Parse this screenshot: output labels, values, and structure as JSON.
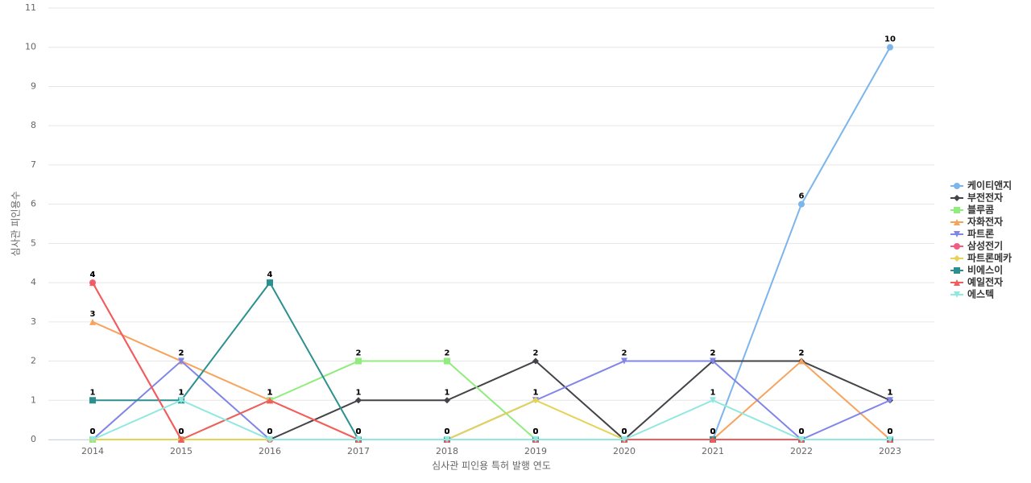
{
  "chart_data": {
    "type": "line",
    "x_label": "심사관 피인용 특허 발행 연도",
    "y_label": "심사관 피인용수",
    "categories": [
      "2014",
      "2015",
      "2016",
      "2017",
      "2018",
      "2019",
      "2020",
      "2021",
      "2022",
      "2023"
    ],
    "ylim": [
      0,
      11
    ],
    "yticks": [
      0,
      1,
      2,
      3,
      4,
      5,
      6,
      7,
      8,
      9,
      10,
      11
    ],
    "grid": true,
    "legend": "right",
    "series": [
      {
        "name": "케이티앤지",
        "color": "#7cb5ec",
        "marker": "circle",
        "values": [
          0,
          0,
          0,
          0,
          0,
          0,
          0,
          0,
          6,
          10
        ]
      },
      {
        "name": "부전전자",
        "color": "#434348",
        "marker": "diamond",
        "values": [
          0,
          0,
          0,
          1,
          1,
          2,
          0,
          2,
          2,
          1
        ]
      },
      {
        "name": "블루콤",
        "color": "#90ed7d",
        "marker": "square",
        "values": [
          0,
          0,
          1,
          2,
          2,
          0,
          0,
          0,
          0,
          0
        ]
      },
      {
        "name": "자화전자",
        "color": "#f7a35c",
        "marker": "triangle",
        "values": [
          3,
          2,
          1,
          0,
          0,
          0,
          0,
          0,
          2,
          0
        ]
      },
      {
        "name": "파트론",
        "color": "#8085e9",
        "marker": "triangle-down",
        "values": [
          0,
          2,
          0,
          0,
          0,
          1,
          2,
          2,
          0,
          1
        ]
      },
      {
        "name": "삼성전기",
        "color": "#f15c80",
        "marker": "circle",
        "values": [
          4,
          0,
          0,
          0,
          0,
          0,
          0,
          0,
          0,
          0
        ]
      },
      {
        "name": "파트론메카",
        "color": "#e4d354",
        "marker": "diamond",
        "values": [
          0,
          0,
          0,
          0,
          0,
          1,
          0,
          0,
          0,
          0
        ]
      },
      {
        "name": "비에스이",
        "color": "#2b908f",
        "marker": "square",
        "values": [
          1,
          1,
          4,
          0,
          0,
          0,
          0,
          0,
          0,
          0
        ]
      },
      {
        "name": "예일전자",
        "color": "#f45b5b",
        "marker": "triangle",
        "values": [
          4,
          0,
          1,
          0,
          0,
          0,
          0,
          0,
          0,
          0
        ]
      },
      {
        "name": "에스텍",
        "color": "#91e8e1",
        "marker": "triangle-down",
        "values": [
          0,
          1,
          0,
          0,
          0,
          0,
          0,
          1,
          0,
          0
        ]
      }
    ]
  }
}
